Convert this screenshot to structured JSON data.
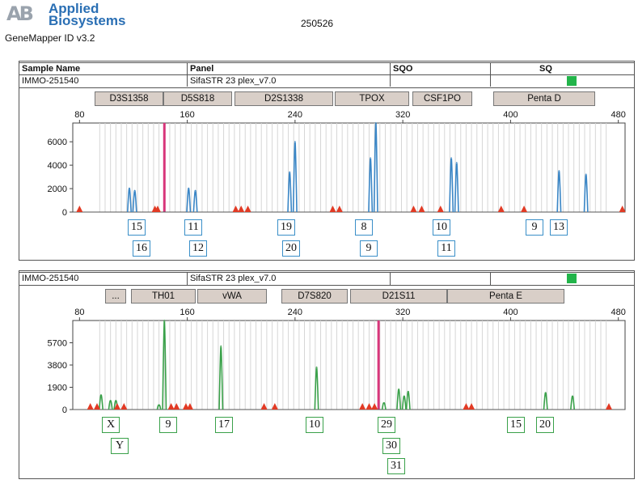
{
  "header": {
    "logo_mark": "AB",
    "logo_line1": "Applied",
    "logo_line2": "Biosystems",
    "app_name": "GeneMapper ID v3.2",
    "run_id": "250526"
  },
  "table_headers": {
    "sample_name": "Sample Name",
    "panel": "Panel",
    "sqo": "SQO",
    "sq": "SQ"
  },
  "panels": [
    {
      "sample_name": "IMMO-251540",
      "panel_name": "SifaSTR 23 plex_v7.0",
      "sq_color": "#22b44a",
      "dye_color": "#3a86c6",
      "loci": [
        "D3S1358",
        "D5S818",
        "D2S1338",
        "TPOX",
        "CSF1PO",
        "Penta D"
      ],
      "alleles_row1": [
        "15",
        "11",
        "19",
        "8",
        "10",
        "9",
        "13"
      ],
      "alleles_row2": [
        "16",
        "12",
        "20",
        "9",
        "11"
      ]
    },
    {
      "sample_name": "IMMO-251540",
      "panel_name": "SifaSTR 23 plex_v7.0",
      "sq_color": "#22b44a",
      "dye_color": "#3aa14a",
      "loci": [
        "...",
        "TH01",
        "vWA",
        "D7S820",
        "D21S11",
        "Penta E"
      ],
      "alleles_row1": [
        "X",
        "9",
        "17",
        "10",
        "29",
        "15",
        "20"
      ],
      "alleles_row2": [
        "Y",
        "30"
      ],
      "alleles_row3": [
        "31"
      ]
    }
  ],
  "chart_data": [
    {
      "type": "line",
      "title": "",
      "xlabel": "",
      "ylabel": "",
      "x_ticks": [
        80,
        160,
        240,
        320,
        400,
        480
      ],
      "y_ticks": [
        0,
        2000,
        4000,
        6000
      ],
      "xlim": [
        75,
        485
      ],
      "ylim": [
        0,
        7600
      ],
      "series": [
        {
          "color": "#3a86c6",
          "peaks": [
            [
              117,
              2000
            ],
            [
              121,
              1800
            ],
            [
              161,
              2000
            ],
            [
              166,
              1800
            ],
            [
              236,
              3400
            ],
            [
              240,
              6000
            ],
            [
              296,
              4600
            ],
            [
              300,
              7600
            ],
            [
              356,
              4600
            ],
            [
              360,
              4200
            ],
            [
              436,
              3500
            ],
            [
              456,
              3200
            ]
          ]
        }
      ],
      "markers": [
        80,
        136,
        138,
        196,
        200,
        205,
        268,
        273,
        328,
        334,
        348,
        393,
        410,
        483
      ],
      "marker_color": "#e23a24",
      "highlight_line": 143,
      "highlight_color": "#d8357a"
    },
    {
      "type": "line",
      "title": "",
      "xlabel": "",
      "ylabel": "",
      "x_ticks": [
        80,
        160,
        240,
        320,
        400,
        480
      ],
      "y_ticks": [
        0,
        1900,
        3800,
        5700
      ],
      "xlim": [
        75,
        485
      ],
      "ylim": [
        0,
        7600
      ],
      "series": [
        {
          "color": "#3aa14a",
          "peaks": [
            [
              96,
              1200
            ],
            [
              103,
              700
            ],
            [
              107,
              700
            ],
            [
              139,
              300
            ],
            [
              143,
              7600
            ],
            [
              185,
              5400
            ],
            [
              256,
              3600
            ],
            [
              306,
              500
            ],
            [
              317,
              1700
            ],
            [
              321,
              1100
            ],
            [
              324,
              1500
            ],
            [
              426,
              1400
            ],
            [
              446,
              1100
            ]
          ]
        }
      ],
      "markers": [
        88,
        93,
        108,
        113,
        148,
        152,
        159,
        162,
        217,
        225,
        290,
        295,
        299,
        367,
        371,
        473
      ],
      "marker_color": "#e23a24",
      "highlight_line": 302,
      "highlight_color": "#d8357a"
    }
  ]
}
